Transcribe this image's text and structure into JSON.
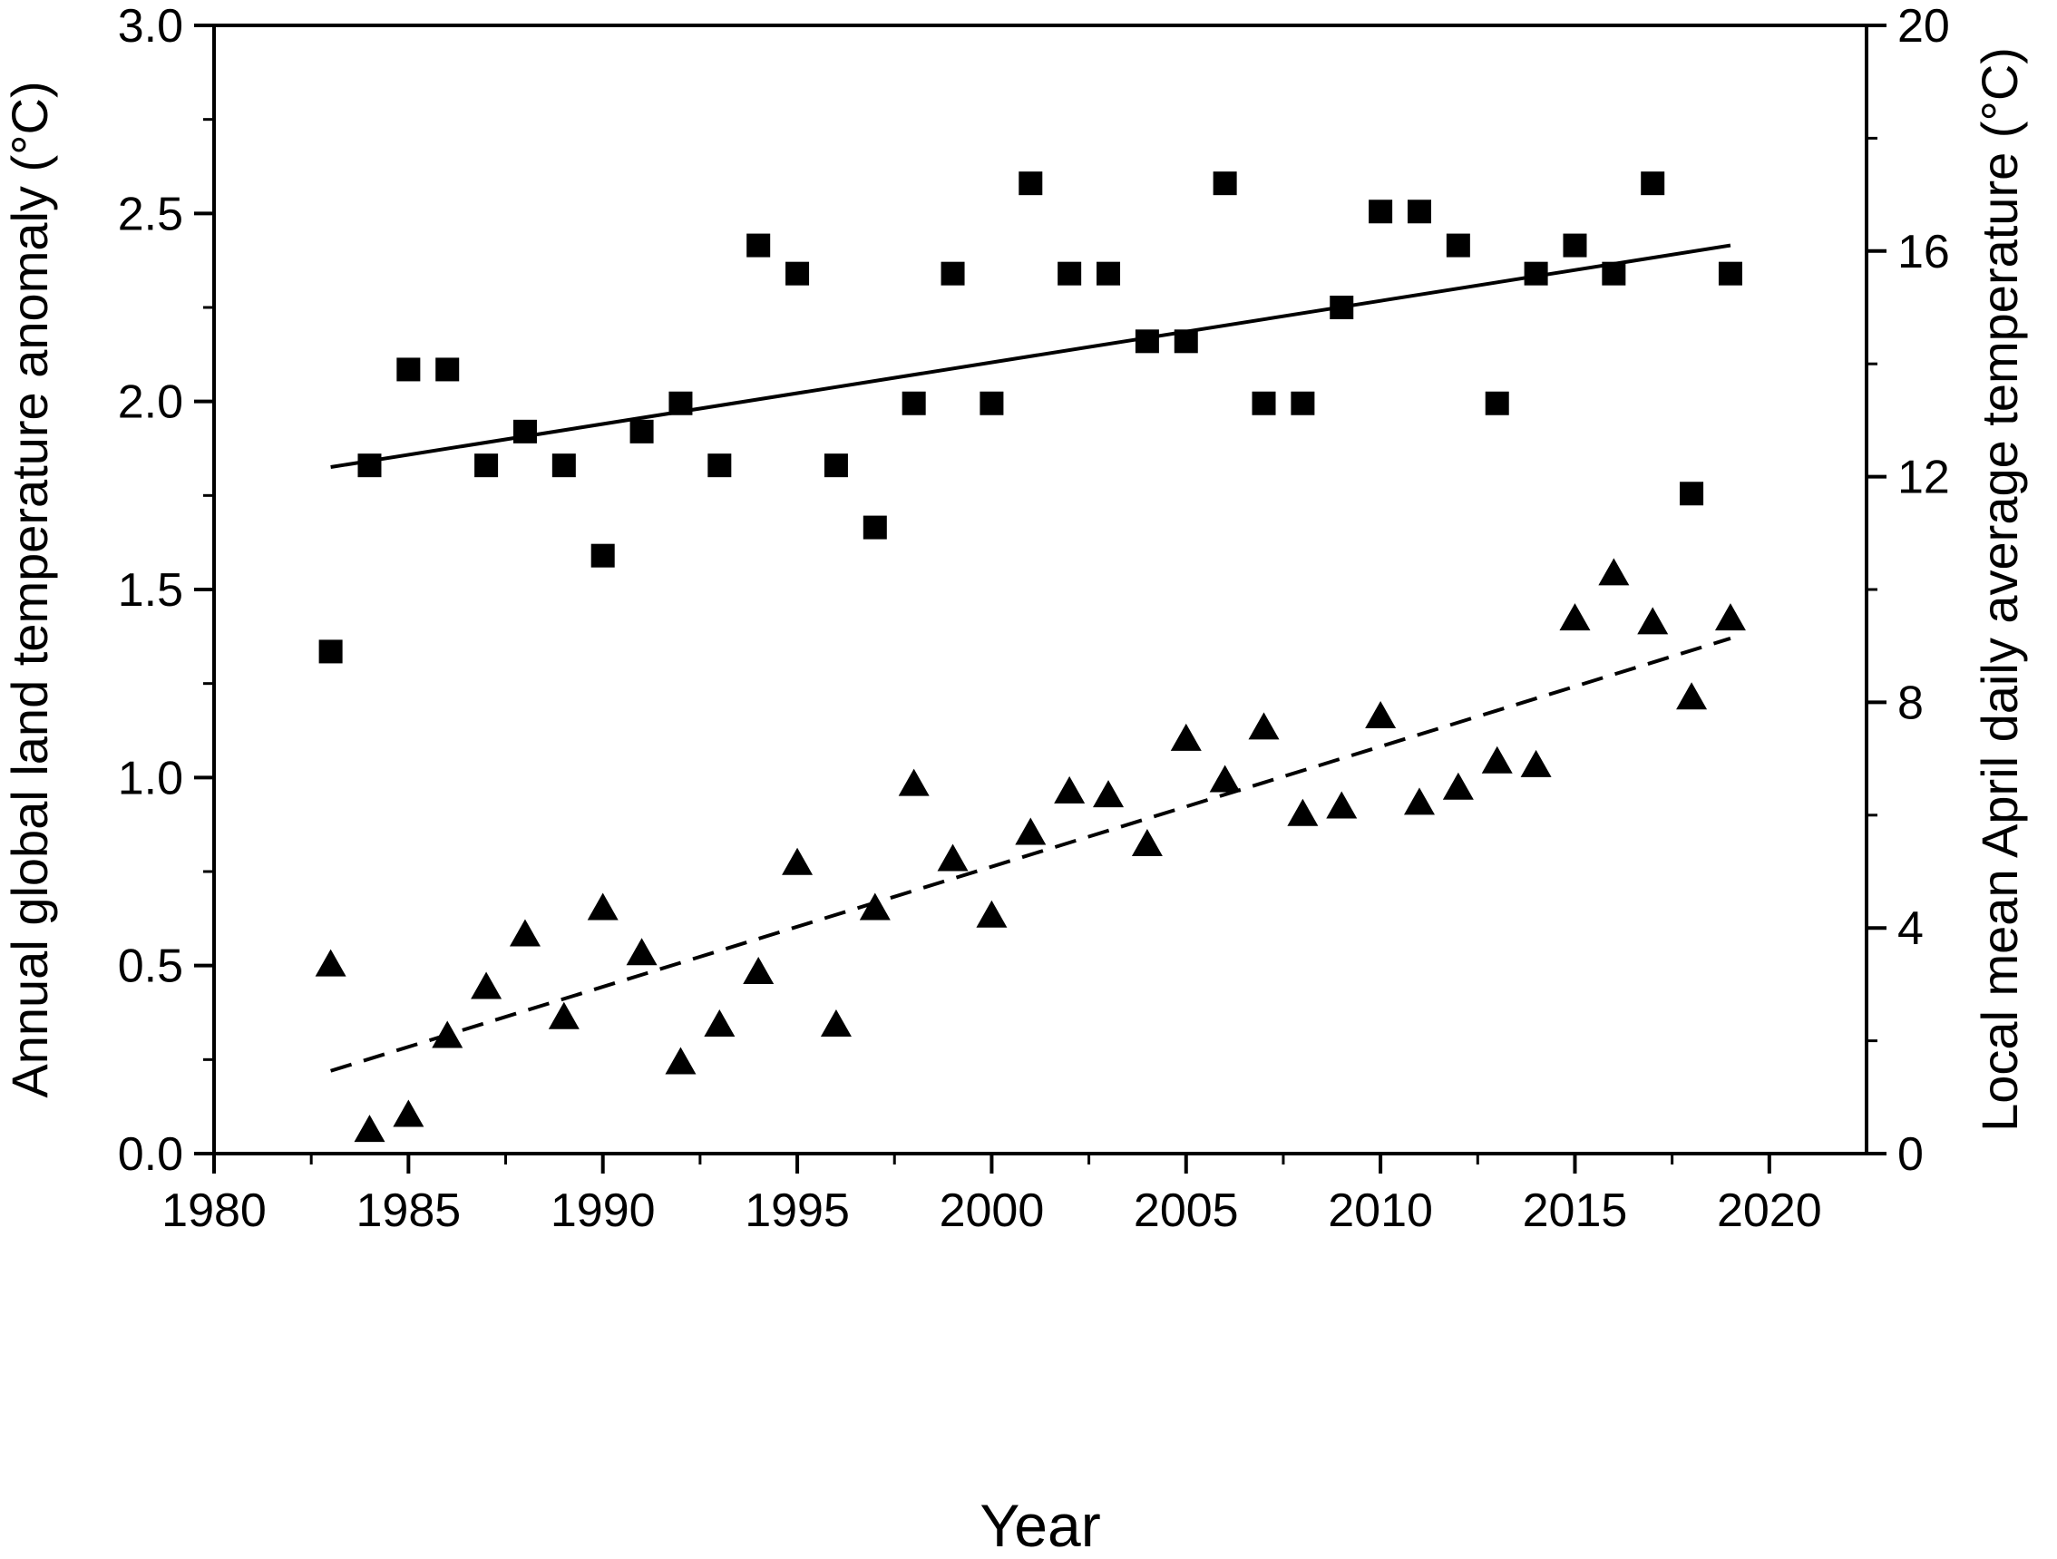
{
  "chart_data": {
    "type": "scatter",
    "xlabel": "Year",
    "ylabel_left": "Annual global land temperature anomaly (°C)",
    "ylabel_right": "Local mean April daily average temperature (°C)",
    "xlim": [
      1980,
      2022.5
    ],
    "ylim_left": [
      0,
      3
    ],
    "ylim_right": [
      0,
      20
    ],
    "x_ticks": [
      "1980",
      "1985",
      "1990",
      "1995",
      "2000",
      "2005",
      "2010",
      "2015",
      "2020"
    ],
    "y_ticks_left": [
      "0.0",
      "0.5",
      "1.0",
      "1.5",
      "2.0",
      "2.5",
      "3.0"
    ],
    "y_ticks_right": [
      "0",
      "4",
      "8",
      "12",
      "16",
      "20"
    ],
    "grid": false,
    "series": [
      {
        "axis": "right",
        "marker": "square",
        "x": [
          1983,
          1984,
          1985,
          1986,
          1987,
          1988,
          1989,
          1990,
          1991,
          1992,
          1993,
          1994,
          1995,
          1996,
          1997,
          1998,
          1999,
          2000,
          2001,
          2002,
          2003,
          2004,
          2005,
          2006,
          2007,
          2008,
          2009,
          2010,
          2011,
          2012,
          2013,
          2014,
          2015,
          2016,
          2017,
          2018,
          2019
        ],
        "y": [
          8.9,
          12.2,
          13.9,
          13.9,
          12.2,
          12.8,
          12.2,
          10.6,
          12.8,
          13.3,
          12.2,
          16.1,
          15.6,
          12.2,
          11.1,
          13.3,
          15.6,
          13.3,
          17.2,
          15.6,
          15.6,
          14.4,
          14.4,
          17.2,
          13.3,
          13.3,
          15.0,
          16.7,
          16.7,
          16.1,
          13.3,
          15.6,
          16.1,
          15.6,
          17.2,
          11.7,
          15.6
        ],
        "trend": {
          "style": "solid",
          "x": [
            1983,
            2019
          ],
          "y": [
            12.17,
            16.1
          ]
        }
      },
      {
        "axis": "left",
        "marker": "triangle",
        "x": [
          1983,
          1984,
          1985,
          1986,
          1987,
          1988,
          1989,
          1990,
          1991,
          1992,
          1993,
          1994,
          1995,
          1996,
          1997,
          1998,
          1999,
          2000,
          2001,
          2002,
          2003,
          2004,
          2005,
          2006,
          2007,
          2008,
          2009,
          2010,
          2011,
          2012,
          2013,
          2014,
          2015,
          2016,
          2017,
          2018,
          2019
        ],
        "y": [
          0.5,
          0.06,
          0.1,
          0.31,
          0.44,
          0.58,
          0.36,
          0.65,
          0.53,
          0.24,
          0.34,
          0.48,
          0.77,
          0.34,
          0.65,
          0.98,
          0.78,
          0.63,
          0.85,
          0.96,
          0.95,
          0.82,
          1.1,
          0.99,
          1.13,
          0.9,
          0.92,
          1.16,
          0.93,
          0.97,
          1.04,
          1.03,
          1.42,
          1.54,
          1.41,
          1.21,
          1.42
        ],
        "trend": {
          "style": "dashed",
          "x": [
            1983,
            2019
          ],
          "y": [
            0.22,
            1.37
          ]
        }
      }
    ]
  }
}
